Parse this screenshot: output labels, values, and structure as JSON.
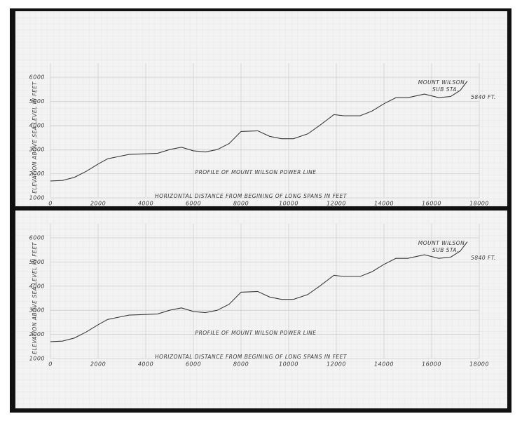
{
  "chart_data": [
    {
      "type": "line",
      "title": "Profile Of Mount Wilson Power Line",
      "x_label": "Horizontal Distance From Begining Of Long Spans In Feet",
      "y_label": "Elevation Above Sea Level In Feet",
      "annotations": [
        "Mount Wilson",
        "Sub Sta.",
        "5840 Ft."
      ],
      "x": [
        0,
        500,
        1000,
        1500,
        2000,
        2400,
        2800,
        3300,
        3800,
        4500,
        5000,
        5500,
        6000,
        6500,
        7000,
        7500,
        8000,
        8700,
        9200,
        9700,
        10200,
        10800,
        11300,
        11900,
        12300,
        13000,
        13500,
        14000,
        14500,
        15000,
        15700,
        16300,
        16800,
        17200,
        17500
      ],
      "series": [
        {
          "name": "Profile",
          "color": "#3a3a3a",
          "values": [
            1700,
            1720,
            1850,
            2100,
            2400,
            2620,
            2700,
            2800,
            2820,
            2850,
            3000,
            3100,
            2950,
            2900,
            3000,
            3250,
            3750,
            3780,
            3550,
            3450,
            3450,
            3650,
            4000,
            4450,
            4400,
            4400,
            4600,
            4900,
            5150,
            5150,
            5300,
            5150,
            5200,
            5450,
            5840
          ]
        }
      ],
      "xlim": [
        0,
        18000
      ],
      "xticks": [
        0,
        2000,
        4000,
        6000,
        8000,
        10000,
        12000,
        14000,
        16000,
        18000
      ],
      "ylim": [
        1000,
        6000
      ],
      "yticks": [
        1000,
        2000,
        3000,
        4000,
        5000,
        6000
      ],
      "grid": true
    },
    {
      "type": "line",
      "title": "Profile Of Mount Wilson Power Line",
      "x_label": "Horizontal Distance From Begining Of Long Spans In Feet",
      "y_label": "Elevation Above Sea Level In Feet",
      "annotations": [
        "Mount Wilson",
        "Sub Sta.",
        "5840 Ft."
      ],
      "x": [
        0,
        500,
        1000,
        1500,
        2000,
        2400,
        2800,
        3300,
        3800,
        4500,
        5000,
        5500,
        6000,
        6500,
        7000,
        7500,
        8000,
        8700,
        9200,
        9700,
        10200,
        10800,
        11300,
        11900,
        12300,
        13000,
        13500,
        14000,
        14500,
        15000,
        15700,
        16300,
        16800,
        17200,
        17500
      ],
      "series": [
        {
          "name": "Profile",
          "color": "#3a3a3a",
          "values": [
            1700,
            1720,
            1850,
            2100,
            2400,
            2620,
            2700,
            2800,
            2820,
            2850,
            3000,
            3100,
            2950,
            2900,
            3000,
            3250,
            3750,
            3780,
            3550,
            3450,
            3450,
            3650,
            4000,
            4450,
            4400,
            4400,
            4600,
            4900,
            5150,
            5150,
            5300,
            5150,
            5200,
            5450,
            5840
          ]
        }
      ],
      "xlim": [
        0,
        18000
      ],
      "xticks": [
        0,
        2000,
        4000,
        6000,
        8000,
        10000,
        12000,
        14000,
        16000,
        18000
      ],
      "ylim": [
        1000,
        6000
      ],
      "yticks": [
        1000,
        2000,
        3000,
        4000,
        5000,
        6000
      ],
      "grid": true
    }
  ]
}
